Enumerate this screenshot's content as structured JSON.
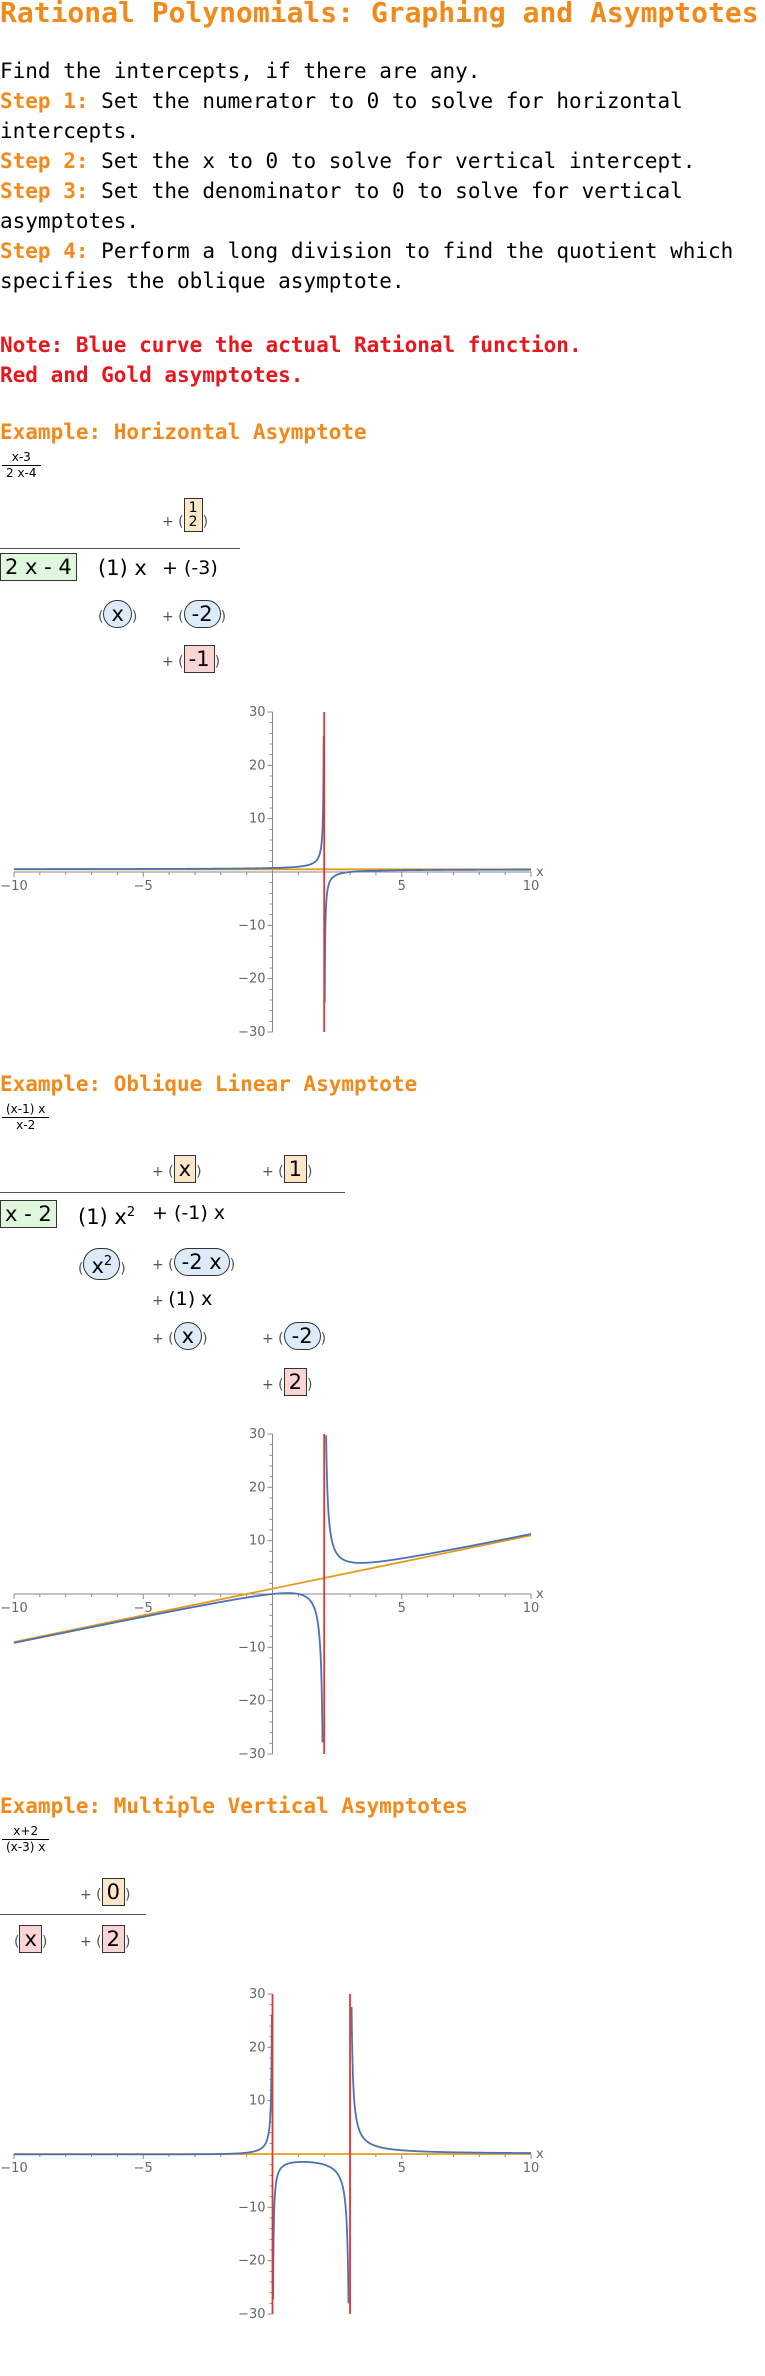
{
  "title": "Rational Polynomials: Graphing and Asymptotes",
  "intro": "Find the intercepts, if there are any.",
  "steps": [
    {
      "label": "Step 1:",
      "text": "Set the numerator to 0 to solve for horizontal intercepts."
    },
    {
      "label": "Step 2:",
      "text": "Set the x to 0 to solve for vertical intercept."
    },
    {
      "label": "Step 3:",
      "text": "Set the denominator to 0 to solve for vertical asymptotes."
    },
    {
      "label": "Step 4:",
      "text": "Perform a long division to find the quotient which specifies the oblique asymptote."
    }
  ],
  "note": [
    "Note: Blue curve the actual Rational function.",
    "Red and Gold asymptotes."
  ],
  "colors": {
    "accent": "#f28a1b",
    "note": "#e8171e",
    "curve": "#4a73b5",
    "vertical_asymptote": "#e8322d",
    "other_asymptote": "#e69b1a"
  },
  "examples": [
    {
      "title": "Example: Horizontal Asymptote",
      "fraction": {
        "num": "x-3",
        "den": "2 x-4"
      },
      "division": {
        "quotient": [
          "1/2"
        ],
        "divisor": "2 x - 4",
        "dividend": [
          "(1) x",
          "+ (-3)"
        ],
        "steps": [
          "x",
          "-2",
          "-1"
        ]
      }
    },
    {
      "title": "Example: Oblique Linear Asymptote",
      "fraction": {
        "num": "(x-1) x",
        "den": "x-2"
      },
      "division": {
        "quotient": [
          "x",
          "1"
        ],
        "divisor": "x - 2",
        "dividend": [
          "(1) x2",
          "+ (-1) x"
        ],
        "steps": [
          "x2",
          "-2 x",
          "(1) x",
          "x",
          "-2",
          "2"
        ]
      }
    },
    {
      "title": "Example: Multiple Vertical Asymptotes",
      "fraction": {
        "num": "x+2",
        "den": "(x-3) x"
      },
      "division": {
        "quotient": [
          "0"
        ],
        "divisor": "x",
        "dividend": [
          "2"
        ]
      }
    }
  ],
  "chart_data": [
    {
      "type": "line",
      "function": "(x-3)/(2x-4)",
      "x_ticks": [
        "-10",
        "-5",
        "5",
        "10"
      ],
      "y_ticks": [
        "30",
        "20",
        "10",
        "-10",
        "-20",
        "-30"
      ],
      "x_axis_label": "x",
      "xlim": [
        -10,
        10
      ],
      "ylim": [
        -30,
        30
      ],
      "vertical_asymptotes": [
        2
      ],
      "other_asymptote": {
        "kind": "horizontal",
        "y": 0.5
      }
    },
    {
      "type": "line",
      "function": "((x-1) x)/(x-2)",
      "x_ticks": [
        "-10",
        "-5",
        "5",
        "10"
      ],
      "y_ticks": [
        "30",
        "20",
        "10",
        "-10",
        "-20",
        "-30"
      ],
      "x_axis_label": "x",
      "xlim": [
        -10,
        10
      ],
      "ylim": [
        -30,
        30
      ],
      "vertical_asymptotes": [
        2
      ],
      "other_asymptote": {
        "kind": "oblique",
        "slope": 1,
        "intercept": 1
      }
    },
    {
      "type": "line",
      "function": "(x+2)/((x-3) x)",
      "x_ticks": [
        "-10",
        "-5",
        "5",
        "10"
      ],
      "y_ticks": [
        "30",
        "20",
        "10",
        "-10",
        "-20",
        "-30"
      ],
      "x_axis_label": "x",
      "xlim": [
        -10,
        10
      ],
      "ylim": [
        -30,
        30
      ],
      "vertical_asymptotes": [
        0,
        3
      ],
      "other_asymptote": {
        "kind": "horizontal",
        "y": 0
      }
    }
  ]
}
